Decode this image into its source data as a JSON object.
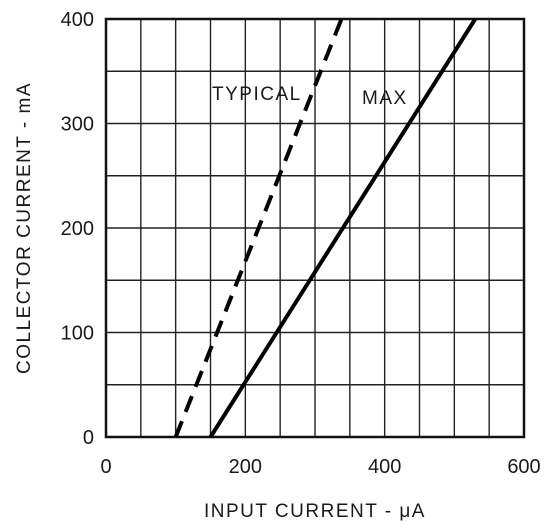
{
  "chart_data": {
    "type": "line",
    "xlabel": "INPUT CURRENT - μA",
    "ylabel": "COLLECTOR CURRENT - mA",
    "xlim": [
      0,
      600
    ],
    "ylim": [
      0,
      400
    ],
    "x_ticks": [
      "0",
      "200",
      "400",
      "600"
    ],
    "y_ticks": [
      "0",
      "100",
      "200",
      "300",
      "400"
    ],
    "grid": true,
    "series": [
      {
        "name": "TYPICAL",
        "style": "dashed",
        "points": [
          {
            "x": 100,
            "y": 0
          },
          {
            "x": 338,
            "y": 400
          }
        ]
      },
      {
        "name": "MAX",
        "style": "solid",
        "points": [
          {
            "x": 150,
            "y": 0
          },
          {
            "x": 530,
            "y": 400
          }
        ]
      }
    ],
    "line_color": "#000000",
    "grid_color": "#222222"
  }
}
